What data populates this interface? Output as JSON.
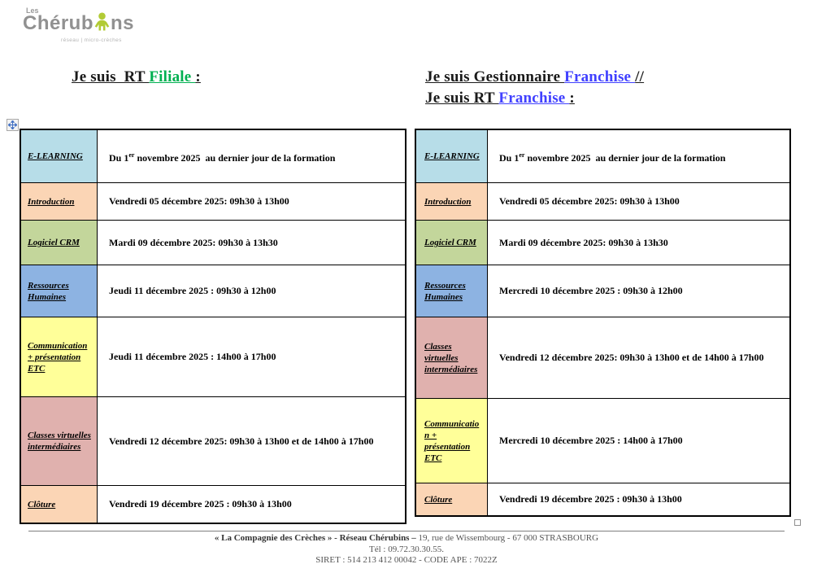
{
  "logo": {
    "les": "Les",
    "name_pre": "Chérub",
    "name_post": "ns",
    "tagline": "réseau | micro-crèches",
    "icon": "child-icon"
  },
  "colors": {
    "logo_green": "#b2cb35",
    "logo_gray": "#919191",
    "heading_green": "#00B050",
    "heading_blue": "#4040FF",
    "handle_blue": "#4472C4"
  },
  "headings": {
    "left": [
      {
        "text": "Je suis  RT ",
        "color": "#1a1a1a"
      },
      {
        "text": "Filiale ",
        "color": "#00B050"
      },
      {
        "text": ":",
        "color": "#1a1a1a"
      }
    ],
    "right_line1": [
      {
        "text": "Je suis Gestionnaire ",
        "color": "#1a1a1a"
      },
      {
        "text": "Franchise ",
        "color": "#4040FF"
      },
      {
        "text": "//",
        "color": "#1a1a1a"
      }
    ],
    "right_line2": [
      {
        "text": "Je suis RT ",
        "color": "#1a1a1a"
      },
      {
        "text": "Franchise ",
        "color": "#4040FF"
      },
      {
        "text": ":",
        "color": "#1a1a1a"
      }
    ]
  },
  "tables": [
    {
      "id": "filiale",
      "rows": [
        {
          "label": "E-LEARNING",
          "bg": "#B7DDE8",
          "value_parts": [
            {
              "t": "Du 1"
            },
            {
              "t": "er",
              "sup": true
            },
            {
              "t": " novembre 2025  au dernier jour de la formation"
            }
          ]
        },
        {
          "label": "Introduction",
          "bg": "#FBD5B5",
          "value_parts": [
            {
              "t": "Vendredi 05 décembre 2025: 09h30 à 13h00"
            }
          ]
        },
        {
          "label": "Logiciel CRM",
          "bg": "#C3D69B",
          "value_parts": [
            {
              "t": "Mardi 09 décembre 2025: 09h30 à 13h30"
            }
          ]
        },
        {
          "label": "Ressources Humaines",
          "bg": "#8DB3E2",
          "value_parts": [
            {
              "t": "Jeudi 11 décembre 2025 : 09h30 à 12h00"
            }
          ]
        },
        {
          "label": "Communication + présentation ETC",
          "bg": "#FFFF99",
          "value_parts": [
            {
              "t": "Jeudi 11 décembre 2025 : 14h00 à 17h00"
            }
          ]
        },
        {
          "label": "Classes virtuelles intermédiaires",
          "bg": "#E0B1AE",
          "value_parts": [
            {
              "t": "Vendredi 12 décembre 2025: 09h30 à 13h00 et de 14h00 à 17h00"
            }
          ]
        },
        {
          "label": "Clôture",
          "bg": "#FBD5B5",
          "value_parts": [
            {
              "t": "Vendredi 19 décembre 2025 : 09h30 à 13h00"
            }
          ]
        }
      ]
    },
    {
      "id": "franchise",
      "rows": [
        {
          "label": "E-LEARNING",
          "bg": "#B7DDE8",
          "value_parts": [
            {
              "t": "Du 1"
            },
            {
              "t": "er",
              "sup": true
            },
            {
              "t": " novembre 2025  au dernier jour de la formation"
            }
          ]
        },
        {
          "label": "Introduction",
          "bg": "#FBD5B5",
          "value_parts": [
            {
              "t": "Vendredi 05 décembre 2025: 09h30 à 13h00"
            }
          ]
        },
        {
          "label": "Logiciel CRM",
          "bg": "#C3D69B",
          "value_parts": [
            {
              "t": "Mardi 09 décembre 2025: 09h30 à 13h30"
            }
          ]
        },
        {
          "label": "Ressources Humaines",
          "bg": "#8DB3E2",
          "value_parts": [
            {
              "t": "Mercredi 10 décembre 2025 : 09h30 à 12h00"
            }
          ]
        },
        {
          "label": "Classes virtuelles intermédiaires",
          "bg": "#E0B1AE",
          "value_parts": [
            {
              "t": "Vendredi 12 décembre 2025: 09h30 à 13h00 et de 14h00 à 17h00"
            }
          ]
        },
        {
          "label": "Communication + présentation ETC",
          "bg": "#FFFF99",
          "value_parts": [
            {
              "t": "Mercredi 10 décembre 2025 : 14h00 à 17h00"
            }
          ]
        },
        {
          "label": "Clôture",
          "bg": "#FBD5B5",
          "value_parts": [
            {
              "t": "Vendredi 19 décembre 2025 : 09h30 à 13h00"
            }
          ]
        }
      ]
    }
  ],
  "footer": {
    "line1": [
      {
        "text": "« La Compagnie des Crèches » - Réseau Chérubins –",
        "bold": true
      },
      {
        "text": " 19, rue de Wissembourg - 67 000 STRASBOURG",
        "bold": false
      }
    ],
    "line2": "Tél : 09.72.30.30.55.",
    "line3": "SIRET : 514 213 412 00042 - CODE APE : 7022Z"
  }
}
